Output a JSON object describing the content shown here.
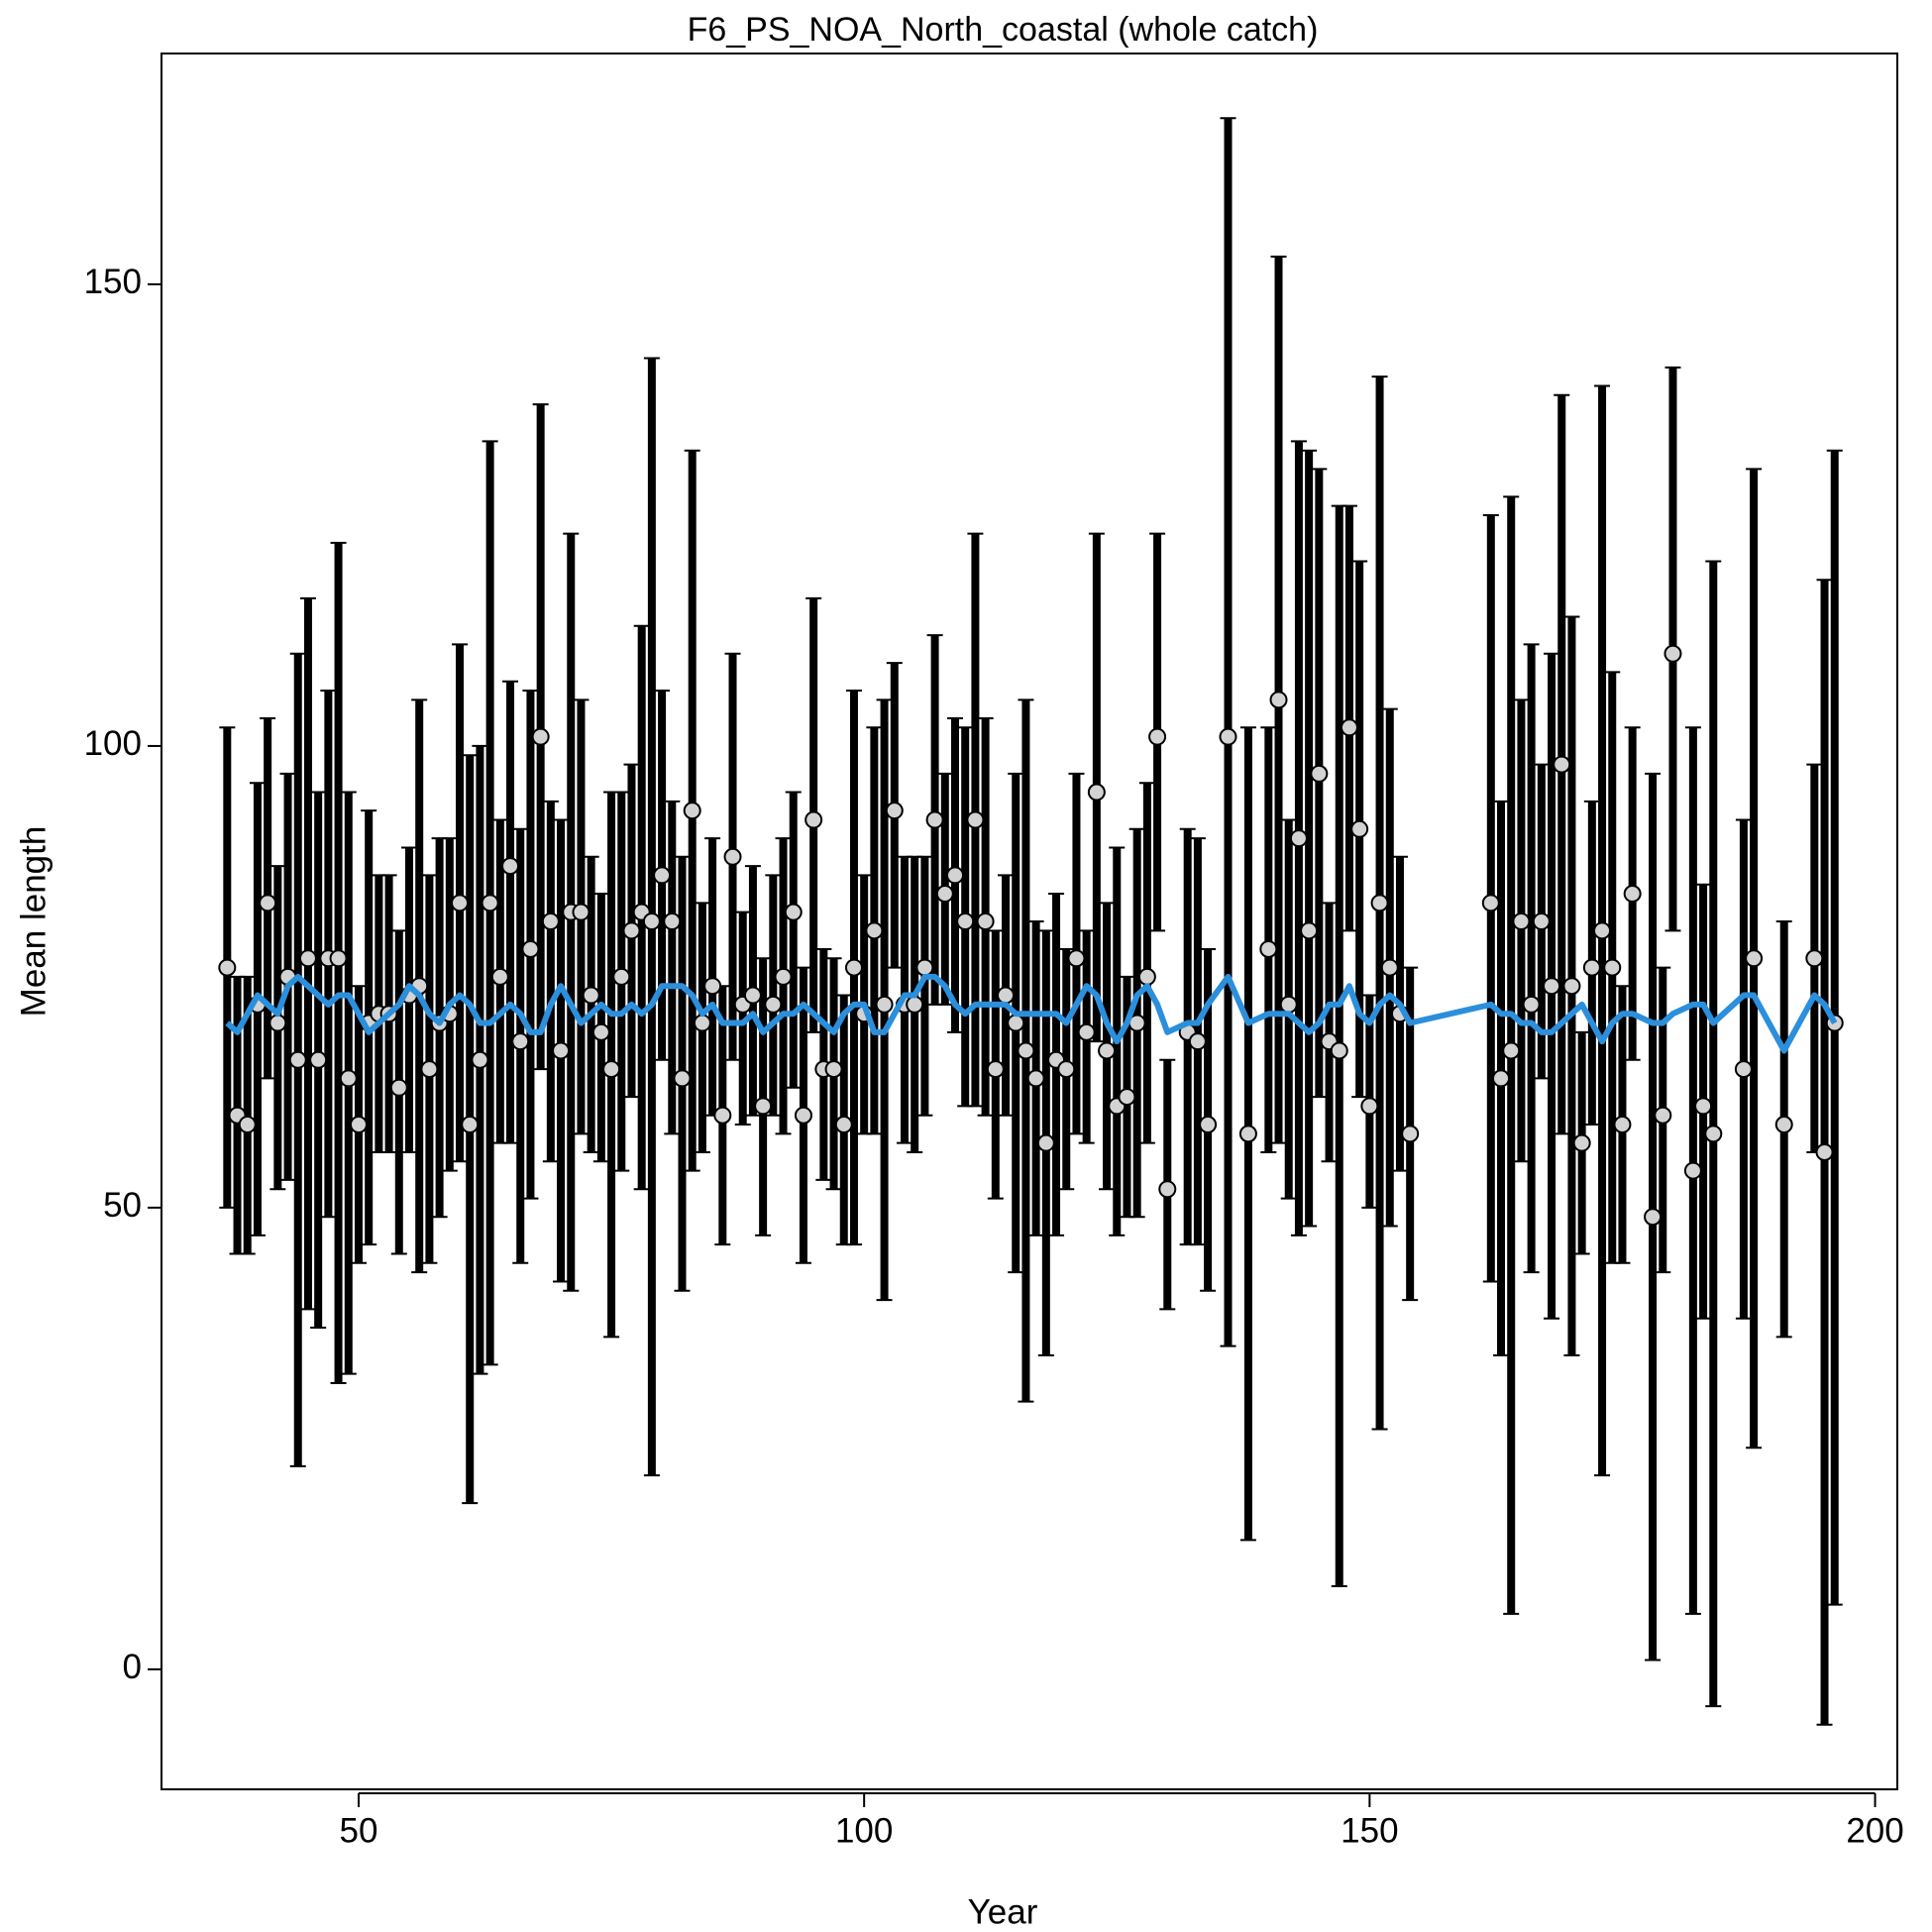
{
  "chart_data": {
    "type": "errorbar",
    "title": "F6_PS_NOA_North_coastal (whole catch)",
    "x_label": "Year",
    "y_label": "Mean length",
    "xlim": [
      30.5,
      202.2
    ],
    "ylim": [
      -13,
      175
    ],
    "xticks": [
      50,
      100,
      150,
      200
    ],
    "yticks": [
      0,
      50,
      100,
      150
    ],
    "point_color": "#d3d3d3",
    "bar_color": "#000000",
    "x": [
      37,
      38,
      39,
      40,
      41,
      42,
      43,
      44,
      45,
      46,
      47,
      48,
      49,
      50,
      51,
      52,
      53,
      54,
      55,
      56,
      57,
      58,
      59,
      60,
      61,
      62,
      63,
      64,
      65,
      66,
      67,
      68,
      69,
      70,
      71,
      72,
      73,
      74,
      75,
      76,
      77,
      78,
      79,
      80,
      81,
      82,
      83,
      84,
      85,
      86,
      87,
      88,
      89,
      90,
      91,
      92,
      93,
      94,
      95,
      96,
      97,
      98,
      99,
      100,
      101,
      102,
      103,
      104,
      105,
      106,
      107,
      108,
      109,
      110,
      111,
      112,
      113,
      114,
      115,
      116,
      117,
      118,
      119,
      120,
      121,
      122,
      123,
      124,
      125,
      126,
      127,
      128,
      129,
      130,
      132,
      133,
      134,
      136,
      138,
      140,
      141,
      142,
      143,
      144,
      145,
      146,
      147,
      148,
      149,
      150,
      151,
      152,
      153,
      154,
      162,
      163,
      164,
      165,
      166,
      167,
      168,
      169,
      170,
      171,
      172,
      173,
      174,
      175,
      176,
      178,
      179,
      180,
      182,
      183,
      184,
      187,
      188,
      191,
      194,
      195,
      196
    ],
    "values": [
      76,
      60,
      59,
      72,
      83,
      70,
      75,
      66,
      77,
      66,
      77,
      77,
      64,
      59,
      70,
      71,
      71,
      63,
      73,
      74,
      65,
      70,
      71,
      83,
      59,
      66,
      83,
      75,
      87,
      68,
      78,
      101,
      81,
      67,
      82,
      82,
      73,
      69,
      65,
      75,
      80,
      82,
      81,
      86,
      81,
      64,
      93,
      70,
      74,
      60,
      88,
      72,
      73,
      61,
      72,
      75,
      82,
      60,
      92,
      65,
      65,
      59,
      76,
      71,
      80,
      72,
      93,
      72,
      72,
      76,
      92,
      84,
      86,
      81,
      92,
      81,
      65,
      73,
      70,
      67,
      64,
      57,
      66,
      65,
      77,
      69,
      95,
      67,
      61,
      62,
      70,
      75,
      101,
      52,
      69,
      68,
      59,
      101,
      58,
      78,
      105,
      72,
      90,
      80,
      97,
      68,
      67,
      102,
      91,
      61,
      83,
      76,
      71,
      58,
      83,
      64,
      67,
      81,
      72,
      81,
      74,
      98,
      74,
      57,
      76,
      80,
      76,
      59,
      84,
      49,
      60,
      110,
      54,
      61,
      58,
      65,
      77,
      59,
      77,
      56,
      70
    ],
    "lower": [
      50,
      45,
      45,
      47,
      64,
      52,
      53,
      22,
      39,
      37,
      49,
      31,
      32,
      44,
      46,
      56,
      56,
      45,
      56,
      43,
      44,
      49,
      54,
      55,
      18,
      32,
      33,
      57,
      57,
      44,
      51,
      65,
      55,
      42,
      41,
      58,
      56,
      55,
      36,
      54,
      62,
      52,
      21,
      66,
      58,
      41,
      54,
      56,
      60,
      46,
      66,
      59,
      60,
      47,
      60,
      58,
      63,
      44,
      69,
      53,
      52,
      46,
      46,
      58,
      58,
      40,
      76,
      57,
      56,
      60,
      72,
      72,
      69,
      61,
      61,
      60,
      51,
      60,
      43,
      29,
      47,
      34,
      47,
      52,
      58,
      57,
      68,
      52,
      47,
      49,
      49,
      57,
      80,
      39,
      46,
      46,
      41,
      35,
      14,
      56,
      57,
      51,
      47,
      48,
      62,
      55,
      9,
      80,
      62,
      50,
      26,
      48,
      54,
      40,
      42,
      34,
      6,
      55,
      43,
      64,
      38,
      58,
      34,
      45,
      59,
      21,
      44,
      44,
      66,
      1,
      43,
      80,
      6,
      38,
      -4,
      38,
      24,
      36,
      56,
      -6,
      7
    ],
    "upper": [
      102,
      75,
      75,
      96,
      103,
      87,
      97,
      110,
      116,
      95,
      106,
      122,
      95,
      74,
      93,
      86,
      86,
      80,
      89,
      105,
      86,
      90,
      90,
      111,
      99,
      100,
      133,
      92,
      107,
      91,
      106,
      137,
      94,
      92,
      123,
      105,
      88,
      84,
      95,
      95,
      98,
      113,
      142,
      106,
      94,
      88,
      132,
      83,
      90,
      74,
      110,
      82,
      87,
      77,
      86,
      90,
      95,
      76,
      116,
      78,
      77,
      73,
      106,
      86,
      102,
      105,
      109,
      88,
      88,
      88,
      112,
      97,
      103,
      102,
      123,
      103,
      80,
      86,
      97,
      105,
      81,
      80,
      84,
      78,
      97,
      80,
      123,
      83,
      89,
      75,
      91,
      96,
      123,
      66,
      91,
      90,
      78,
      168,
      102,
      102,
      153,
      92,
      133,
      132,
      130,
      83,
      126,
      126,
      120,
      73,
      140,
      104,
      88,
      76,
      125,
      94,
      127,
      105,
      111,
      98,
      110,
      138,
      114,
      69,
      94,
      139,
      108,
      74,
      102,
      97,
      76,
      141,
      102,
      85,
      120,
      92,
      130,
      81,
      98,
      118,
      132
    ],
    "fit": {
      "color": "#2b8fdc",
      "values": [
        70,
        69,
        71,
        73,
        72,
        71,
        74,
        75,
        74,
        73,
        72,
        73,
        73,
        71,
        69,
        70,
        71,
        72,
        74,
        73,
        71,
        70,
        72,
        73,
        72,
        70,
        70,
        71,
        72,
        71,
        69,
        69,
        72,
        74,
        72,
        70,
        71,
        72,
        71,
        71,
        72,
        71,
        72,
        74,
        74,
        74,
        73,
        71,
        72,
        70,
        70,
        70,
        71,
        69,
        70,
        71,
        71,
        72,
        71,
        70,
        69,
        71,
        72,
        72,
        69,
        69,
        71,
        73,
        73,
        75,
        75,
        74,
        72,
        71,
        72,
        72,
        72,
        72,
        71,
        71,
        71,
        71,
        71,
        70,
        72,
        74,
        73,
        70,
        68,
        70,
        73,
        74,
        72,
        69,
        70,
        70,
        72,
        75,
        70,
        71,
        71,
        71,
        70,
        69,
        70,
        72,
        72,
        74,
        71,
        70,
        72,
        73,
        72,
        70,
        72,
        71,
        71,
        70,
        70,
        69,
        69,
        70,
        71,
        72,
        70,
        68,
        70,
        71,
        71,
        70,
        70,
        71,
        72,
        72,
        70,
        73,
        73,
        67,
        73,
        72,
        70
      ]
    }
  }
}
